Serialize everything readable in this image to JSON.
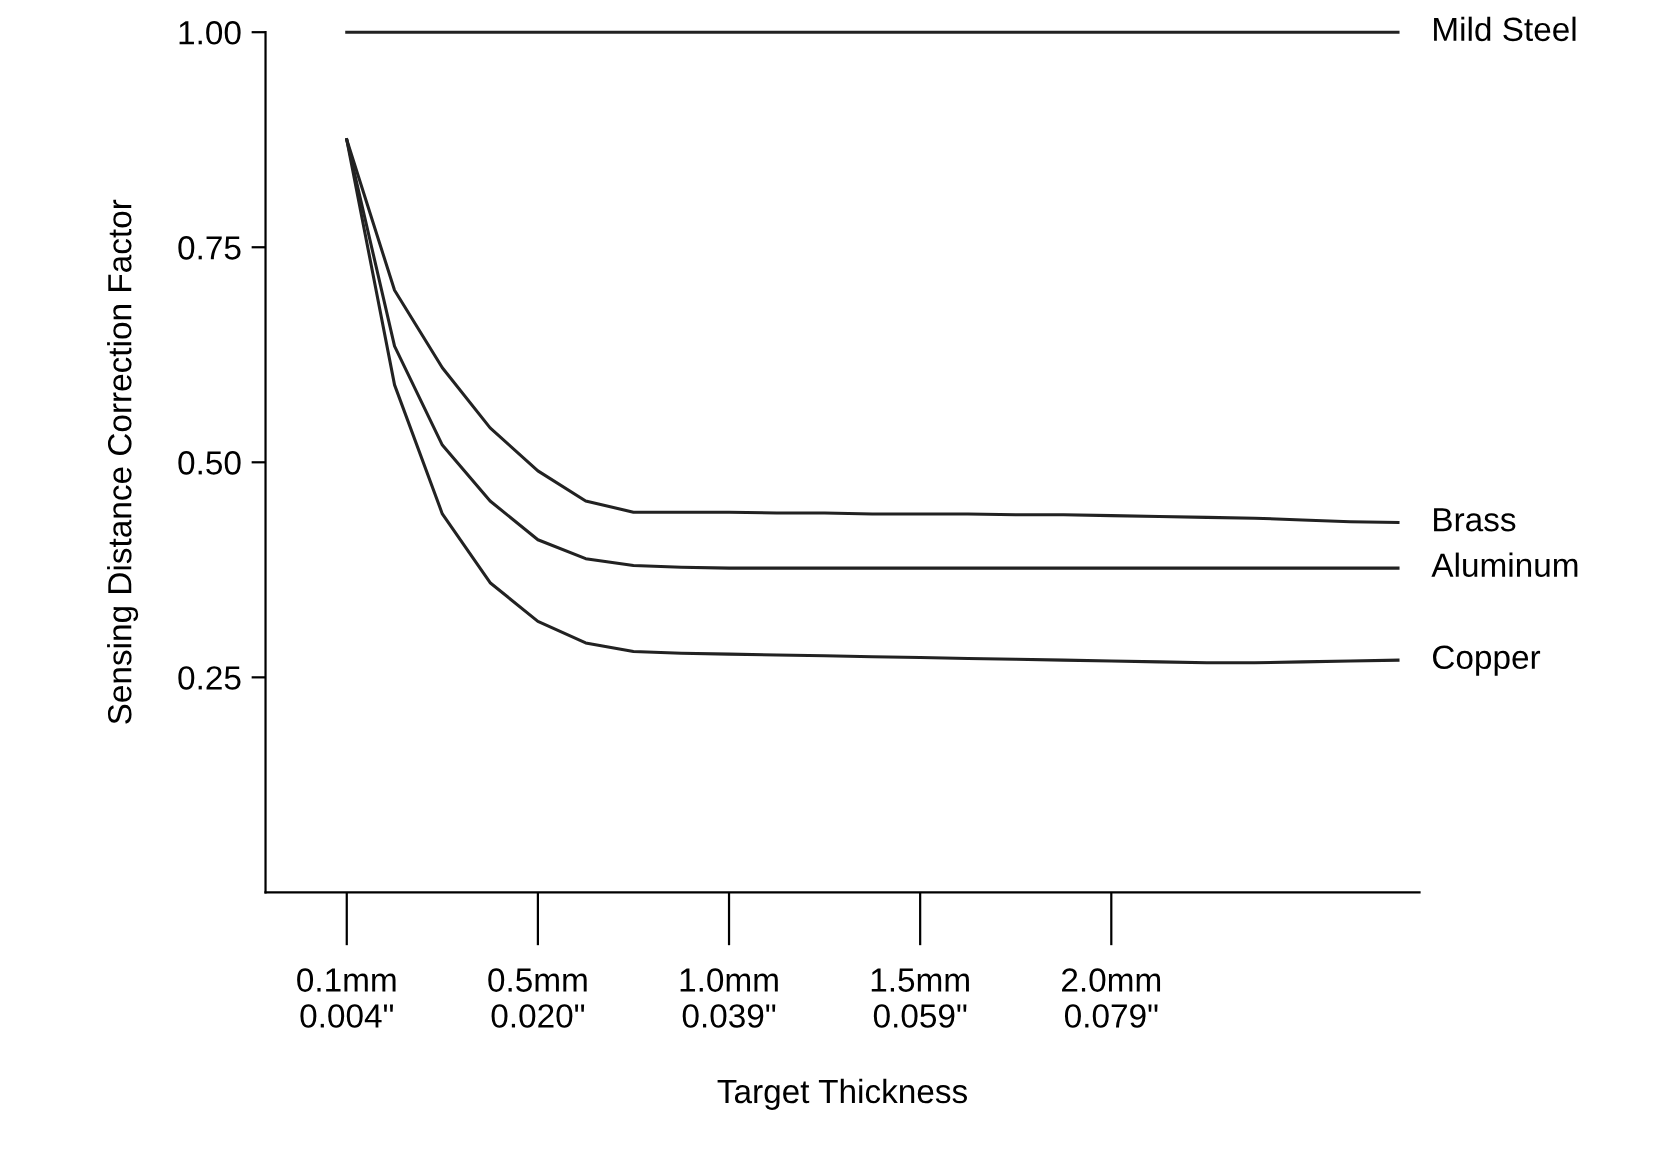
{
  "chart_data": {
    "type": "line",
    "xlabel": "Target Thickness",
    "ylabel": "Sensing Distance Correction Factor",
    "categories": [
      "0.1mm\n0.004\"",
      null,
      null,
      null,
      "0.5mm\n0.020\"",
      null,
      null,
      null,
      "1.0mm\n0.039\"",
      null,
      null,
      null,
      "1.5mm\n0.059\"",
      null,
      null,
      null,
      "2.0mm\n0.079\"",
      null,
      null,
      null,
      null,
      null,
      null
    ],
    "ylim": [
      0,
      1.0
    ],
    "yticks": [
      {
        "value": 0.25,
        "label": "0.25"
      },
      {
        "value": 0.5,
        "label": "0.50"
      },
      {
        "value": 0.75,
        "label": "0.75"
      },
      {
        "value": 1.0,
        "label": "1.00"
      }
    ],
    "grid": false,
    "legend": false,
    "marker": "none",
    "line_style": "solid",
    "series": [
      {
        "name": "Mild Steel",
        "color": "#222222",
        "values": [
          1.0,
          1.0,
          1.0,
          1.0,
          1.0,
          1.0,
          1.0,
          1.0,
          1.0,
          1.0,
          1.0,
          1.0,
          1.0,
          1.0,
          1.0,
          1.0,
          1.0,
          1.0,
          1.0,
          1.0,
          1.0,
          1.0,
          1.0
        ]
      },
      {
        "name": "Brass",
        "color": "#222222",
        "values": [
          0.875,
          0.7,
          0.61,
          0.54,
          0.49,
          0.455,
          0.442,
          0.442,
          0.442,
          0.441,
          0.441,
          0.44,
          0.44,
          0.44,
          0.439,
          0.439,
          0.438,
          0.437,
          0.436,
          0.435,
          0.433,
          0.431,
          0.43
        ]
      },
      {
        "name": "Aluminum",
        "color": "#222222",
        "values": [
          0.875,
          0.635,
          0.52,
          0.455,
          0.41,
          0.388,
          0.38,
          0.378,
          0.377,
          0.377,
          0.377,
          0.377,
          0.377,
          0.377,
          0.377,
          0.377,
          0.377,
          0.377,
          0.377,
          0.377,
          0.377,
          0.377,
          0.377
        ]
      },
      {
        "name": "Copper",
        "color": "#222222",
        "values": [
          0.875,
          0.59,
          0.44,
          0.36,
          0.315,
          0.29,
          0.28,
          0.278,
          0.277,
          0.276,
          0.275,
          0.274,
          0.273,
          0.272,
          0.271,
          0.27,
          0.269,
          0.268,
          0.267,
          0.267,
          0.268,
          0.269,
          0.27
        ]
      }
    ]
  }
}
